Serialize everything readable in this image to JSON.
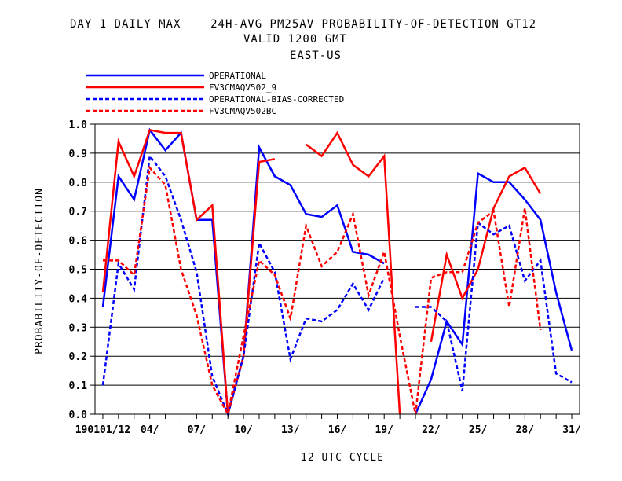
{
  "chart_data": {
    "type": "line",
    "title": [
      "DAY 1 DAILY MAX    24H-AVG PM25AV PROBABILITY-OF-DETECTION GT12",
      "VALID 1200 GMT",
      "EAST-US"
    ],
    "xlabel": "12 UTC CYCLE",
    "ylabel": "PROBABILITY-OF-DETECTION",
    "ylim": [
      0,
      1
    ],
    "y_ticks": [
      "0.0",
      "0.1",
      "0.2",
      "0.3",
      "0.4",
      "0.5",
      "0.6",
      "0.7",
      "0.8",
      "0.9",
      "1.0"
    ],
    "x_range": [
      0.5,
      31.5
    ],
    "x_tick_labels": [
      {
        "x": 1,
        "label": "190101/12"
      },
      {
        "x": 4,
        "label": "04/"
      },
      {
        "x": 7,
        "label": "07/"
      },
      {
        "x": 10,
        "label": "10/"
      },
      {
        "x": 13,
        "label": "13/"
      },
      {
        "x": 16,
        "label": "16/"
      },
      {
        "x": 19,
        "label": "19/"
      },
      {
        "x": 22,
        "label": "22/"
      },
      {
        "x": 25,
        "label": "25/"
      },
      {
        "x": 28,
        "label": "28/"
      },
      {
        "x": 31,
        "label": "31/"
      }
    ],
    "grid": "horizontal",
    "legend_position": "top-left",
    "series": [
      {
        "name": "OPERATIONAL",
        "color": "#0000ff",
        "dash": "solid",
        "x": [
          1,
          2,
          3,
          4,
          5,
          6,
          7,
          8,
          9,
          10,
          11,
          12,
          13,
          14,
          15,
          16,
          17,
          18,
          19,
          20,
          21,
          22,
          23,
          24,
          25,
          26,
          27,
          28,
          29,
          30,
          31
        ],
        "values": [
          0.37,
          0.82,
          0.74,
          0.98,
          0.91,
          0.97,
          0.67,
          0.67,
          0.0,
          0.2,
          0.92,
          0.82,
          0.79,
          0.69,
          0.68,
          0.72,
          0.56,
          0.55,
          0.52,
          null,
          0.0,
          0.12,
          0.32,
          0.24,
          0.83,
          0.8,
          0.8,
          0.74,
          0.67,
          0.42,
          0.22
        ]
      },
      {
        "name": "FV3CMAQV502_9",
        "color": "#ff0000",
        "dash": "solid",
        "x": [
          1,
          2,
          3,
          4,
          5,
          6,
          7,
          8,
          9,
          10,
          11,
          12,
          13,
          14,
          15,
          16,
          17,
          18,
          19,
          20,
          21,
          22,
          23,
          24,
          25,
          26,
          27,
          28,
          29,
          30,
          31
        ],
        "values": [
          0.42,
          0.94,
          0.82,
          0.98,
          0.97,
          0.97,
          0.67,
          0.72,
          0.0,
          0.2,
          0.87,
          0.88,
          null,
          0.93,
          0.89,
          0.97,
          0.86,
          0.82,
          0.89,
          0.0,
          null,
          0.25,
          0.55,
          0.4,
          0.5,
          0.71,
          0.82,
          0.85,
          0.76,
          null,
          null
        ]
      },
      {
        "name": "OPERATIONAL-BIAS-CORRECTED",
        "color": "#0000ff",
        "dash": "dashed",
        "x": [
          1,
          2,
          3,
          4,
          5,
          6,
          7,
          8,
          9,
          10,
          11,
          12,
          13,
          14,
          15,
          16,
          17,
          18,
          19,
          20,
          21,
          22,
          23,
          24,
          25,
          26,
          27,
          28,
          29,
          30,
          31
        ],
        "values": [
          0.1,
          0.52,
          0.43,
          0.89,
          0.82,
          0.67,
          0.49,
          0.13,
          0.0,
          0.2,
          0.59,
          0.49,
          0.19,
          0.33,
          0.32,
          0.36,
          0.45,
          0.36,
          0.47,
          null,
          0.37,
          0.37,
          0.32,
          0.08,
          0.66,
          0.62,
          0.65,
          0.46,
          0.53,
          0.14,
          0.11
        ]
      },
      {
        "name": "FV3CMAQV502BC",
        "color": "#ff0000",
        "dash": "dashed",
        "x": [
          1,
          2,
          3,
          4,
          5,
          6,
          7,
          8,
          9,
          10,
          11,
          12,
          13,
          14,
          15,
          16,
          17,
          18,
          19,
          20,
          21,
          22,
          23,
          24,
          25,
          26,
          27,
          28,
          29,
          30,
          31
        ],
        "values": [
          0.53,
          0.53,
          0.48,
          0.85,
          0.79,
          0.5,
          0.34,
          0.1,
          0.0,
          0.27,
          0.53,
          0.48,
          0.33,
          0.65,
          0.51,
          0.56,
          0.69,
          0.41,
          0.56,
          0.27,
          0.0,
          0.47,
          0.49,
          0.49,
          0.66,
          0.7,
          0.37,
          0.71,
          0.29,
          null,
          null
        ]
      }
    ]
  }
}
